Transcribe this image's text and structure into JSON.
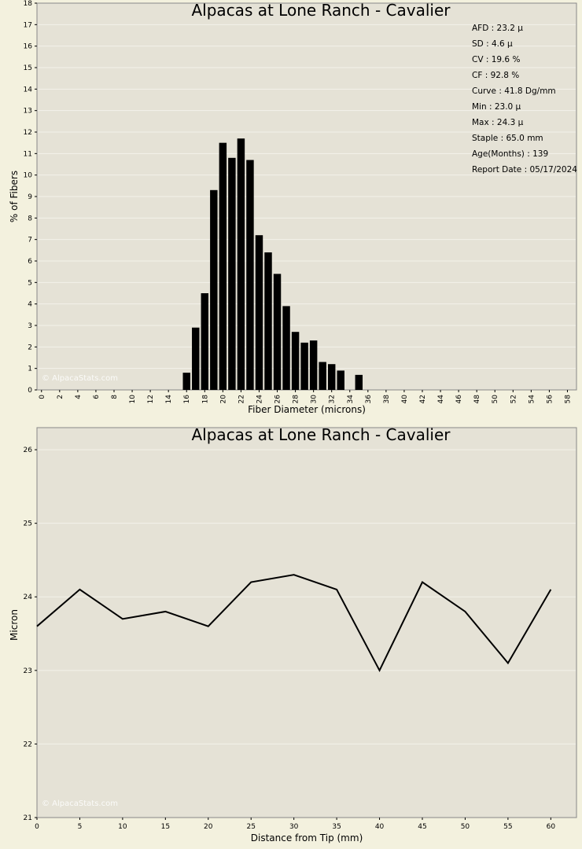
{
  "chart_data": [
    {
      "type": "bar",
      "title": "Alpacas at Lone Ranch - Cavalier",
      "xlabel": "Fiber Diameter (microns)",
      "ylabel": "% of Fibers",
      "xlim": [
        -0.5,
        59
      ],
      "ylim": [
        0,
        18
      ],
      "x_ticks": [
        0,
        2,
        4,
        6,
        8,
        10,
        12,
        14,
        16,
        18,
        20,
        22,
        24,
        26,
        28,
        30,
        32,
        34,
        36,
        38,
        40,
        42,
        44,
        46,
        48,
        50,
        52,
        54,
        56,
        58
      ],
      "y_ticks": [
        0,
        1,
        2,
        3,
        4,
        5,
        6,
        7,
        8,
        9,
        10,
        11,
        12,
        13,
        14,
        15,
        16,
        17,
        18
      ],
      "grid": true,
      "bars": [
        {
          "x": 16,
          "value": 0.8
        },
        {
          "x": 17,
          "value": 2.9
        },
        {
          "x": 18,
          "value": 4.5
        },
        {
          "x": 19,
          "value": 9.3
        },
        {
          "x": 20,
          "value": 11.5
        },
        {
          "x": 21,
          "value": 10.8
        },
        {
          "x": 22,
          "value": 11.7
        },
        {
          "x": 23,
          "value": 10.7
        },
        {
          "x": 24,
          "value": 7.2
        },
        {
          "x": 25,
          "value": 6.4
        },
        {
          "x": 26,
          "value": 5.4
        },
        {
          "x": 27,
          "value": 3.9
        },
        {
          "x": 28,
          "value": 2.7
        },
        {
          "x": 29,
          "value": 2.2
        },
        {
          "x": 30,
          "value": 2.3
        },
        {
          "x": 31,
          "value": 1.3
        },
        {
          "x": 32,
          "value": 1.2
        },
        {
          "x": 33,
          "value": 0.9
        },
        {
          "x": 35,
          "value": 0.7
        }
      ],
      "stats": [
        "AFD : 23.2 µ",
        "SD : 4.6 µ",
        "CV : 19.6 %",
        "CF : 92.8 %",
        "Curve : 41.8 Dg/mm",
        "Min : 23.0 µ",
        "Max : 24.3 µ",
        "Staple : 65.0 mm",
        "Age(Months) : 139",
        "Report Date : 05/17/2024"
      ],
      "watermark": "© AlpacaStats.com"
    },
    {
      "type": "line",
      "title": "Alpacas at Lone Ranch - Cavalier",
      "xlabel": "Distance from Tip (mm)",
      "ylabel": "Micron",
      "xlim": [
        0,
        63
      ],
      "ylim": [
        21,
        26.3
      ],
      "x_ticks": [
        0,
        5,
        10,
        15,
        20,
        25,
        30,
        35,
        40,
        45,
        50,
        55,
        60
      ],
      "y_ticks": [
        21,
        22,
        23,
        24,
        25,
        26
      ],
      "grid": true,
      "x": [
        0,
        5,
        10,
        15,
        20,
        25,
        30,
        35,
        40,
        45,
        50,
        55,
        60
      ],
      "y": [
        23.6,
        24.1,
        23.7,
        23.8,
        23.6,
        24.2,
        24.3,
        24.1,
        23.0,
        24.2,
        23.8,
        23.1,
        24.1
      ],
      "watermark": "© AlpacaStats.com"
    }
  ],
  "colors": {
    "page_bg": "#f3f1de",
    "plot_bg": "#e5e2d6",
    "grid": "#f4f2ea",
    "bar": "#000000",
    "line": "#000000"
  }
}
